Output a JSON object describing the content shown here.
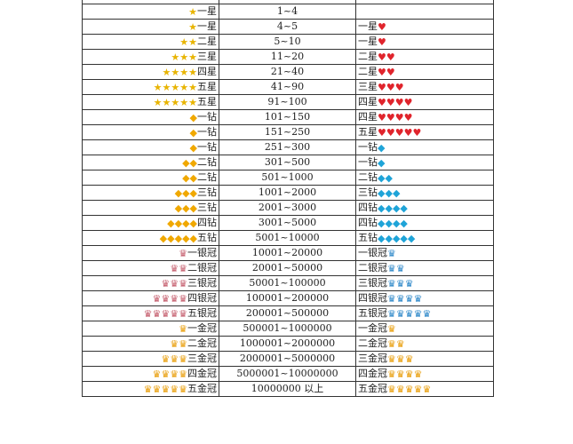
{
  "icons": {
    "star": {
      "glyph": "★",
      "color": "#e8b400"
    },
    "gold-diamond": {
      "glyph": "◆",
      "color": "#f0a800"
    },
    "silver-crown": {
      "glyph": "♛",
      "color": "#c45a6a"
    },
    "gold-crown": {
      "glyph": "♛",
      "color": "#e89a00"
    },
    "heart": {
      "glyph": "♥",
      "color": "#e0242c"
    },
    "blue-diamond": {
      "glyph": "◆",
      "color": "#1fa4d8"
    },
    "blue-crown": {
      "glyph": "♛",
      "color": "#2a86c8"
    }
  },
  "rows": [
    {
      "left": {
        "label": "",
        "icon": "",
        "count": 0
      },
      "range": "",
      "right": {
        "label": "",
        "icon": "",
        "count": 0
      }
    },
    {
      "left": {
        "label": "一星",
        "icon": "star",
        "count": 1
      },
      "range": "1~4",
      "right": {
        "label": "",
        "icon": "",
        "count": 0
      }
    },
    {
      "left": {
        "label": "一星",
        "icon": "star",
        "count": 1
      },
      "range": "4~5",
      "right": {
        "label": "一星",
        "icon": "heart",
        "count": 1
      }
    },
    {
      "left": {
        "label": "二星",
        "icon": "star",
        "count": 2
      },
      "range": "5~10",
      "right": {
        "label": "一星",
        "icon": "heart",
        "count": 1
      }
    },
    {
      "left": {
        "label": "三星",
        "icon": "star",
        "count": 3
      },
      "range": "11~20",
      "right": {
        "label": "二星",
        "icon": "heart",
        "count": 2
      }
    },
    {
      "left": {
        "label": "四星",
        "icon": "star",
        "count": 4
      },
      "range": "21~40",
      "right": {
        "label": "二星",
        "icon": "heart",
        "count": 2
      }
    },
    {
      "left": {
        "label": "五星",
        "icon": "star",
        "count": 5
      },
      "range": "41~90",
      "right": {
        "label": "三星",
        "icon": "heart",
        "count": 3
      }
    },
    {
      "left": {
        "label": "五星",
        "icon": "star",
        "count": 5
      },
      "range": "91~100",
      "right": {
        "label": "四星",
        "icon": "heart",
        "count": 4
      }
    },
    {
      "left": {
        "label": "一钻",
        "icon": "gold-diamond",
        "count": 1
      },
      "range": "101~150",
      "right": {
        "label": "四星",
        "icon": "heart",
        "count": 4
      }
    },
    {
      "left": {
        "label": "一钻",
        "icon": "gold-diamond",
        "count": 1
      },
      "range": "151~250",
      "right": {
        "label": "五星",
        "icon": "heart",
        "count": 5
      }
    },
    {
      "left": {
        "label": "一钻",
        "icon": "gold-diamond",
        "count": 1
      },
      "range": "251~300",
      "right": {
        "label": "一钻",
        "icon": "blue-diamond",
        "count": 1
      }
    },
    {
      "left": {
        "label": "二钻",
        "icon": "gold-diamond",
        "count": 2
      },
      "range": "301~500",
      "right": {
        "label": "一钻",
        "icon": "blue-diamond",
        "count": 1
      }
    },
    {
      "left": {
        "label": "二钻",
        "icon": "gold-diamond",
        "count": 2
      },
      "range": "501~1000",
      "right": {
        "label": "二钻",
        "icon": "blue-diamond",
        "count": 2
      }
    },
    {
      "left": {
        "label": "三钻",
        "icon": "gold-diamond",
        "count": 3
      },
      "range": "1001~2000",
      "right": {
        "label": "三钻",
        "icon": "blue-diamond",
        "count": 3
      }
    },
    {
      "left": {
        "label": "三钻",
        "icon": "gold-diamond",
        "count": 3
      },
      "range": "2001~3000",
      "right": {
        "label": "四钻",
        "icon": "blue-diamond",
        "count": 4
      }
    },
    {
      "left": {
        "label": "四钻",
        "icon": "gold-diamond",
        "count": 4
      },
      "range": "3001~5000",
      "right": {
        "label": "四钻",
        "icon": "blue-diamond",
        "count": 4
      }
    },
    {
      "left": {
        "label": "五钻",
        "icon": "gold-diamond",
        "count": 5
      },
      "range": "5001~10000",
      "right": {
        "label": "五钻",
        "icon": "blue-diamond",
        "count": 5
      }
    },
    {
      "left": {
        "label": "一银冠",
        "icon": "silver-crown",
        "count": 1
      },
      "range": "10001~20000",
      "right": {
        "label": "一银冠",
        "icon": "blue-crown",
        "count": 1
      }
    },
    {
      "left": {
        "label": "二银冠",
        "icon": "silver-crown",
        "count": 2
      },
      "range": "20001~50000",
      "right": {
        "label": "二银冠",
        "icon": "blue-crown",
        "count": 2
      }
    },
    {
      "left": {
        "label": "三银冠",
        "icon": "silver-crown",
        "count": 3
      },
      "range": "50001~100000",
      "right": {
        "label": "三银冠",
        "icon": "blue-crown",
        "count": 3
      }
    },
    {
      "left": {
        "label": "四银冠",
        "icon": "silver-crown",
        "count": 4
      },
      "range": "100001~200000",
      "right": {
        "label": "四银冠",
        "icon": "blue-crown",
        "count": 4
      }
    },
    {
      "left": {
        "label": "五银冠",
        "icon": "silver-crown",
        "count": 5
      },
      "range": "200001~500000",
      "right": {
        "label": "五银冠",
        "icon": "blue-crown",
        "count": 5
      }
    },
    {
      "left": {
        "label": "一金冠",
        "icon": "gold-crown",
        "count": 1
      },
      "range": "500001~1000000",
      "right": {
        "label": "一金冠",
        "icon": "gold-crown",
        "count": 1
      }
    },
    {
      "left": {
        "label": "二金冠",
        "icon": "gold-crown",
        "count": 2
      },
      "range": "1000001~2000000",
      "right": {
        "label": "二金冠",
        "icon": "gold-crown",
        "count": 2
      }
    },
    {
      "left": {
        "label": "三金冠",
        "icon": "gold-crown",
        "count": 3
      },
      "range": "2000001~5000000",
      "right": {
        "label": "三金冠",
        "icon": "gold-crown",
        "count": 3
      }
    },
    {
      "left": {
        "label": "四金冠",
        "icon": "gold-crown",
        "count": 4
      },
      "range": "5000001~10000000",
      "right": {
        "label": "四金冠",
        "icon": "gold-crown",
        "count": 4
      }
    },
    {
      "left": {
        "label": "五金冠",
        "icon": "gold-crown",
        "count": 5
      },
      "range": "10000000 以上",
      "right": {
        "label": "五金冠",
        "icon": "gold-crown",
        "count": 5
      }
    }
  ]
}
